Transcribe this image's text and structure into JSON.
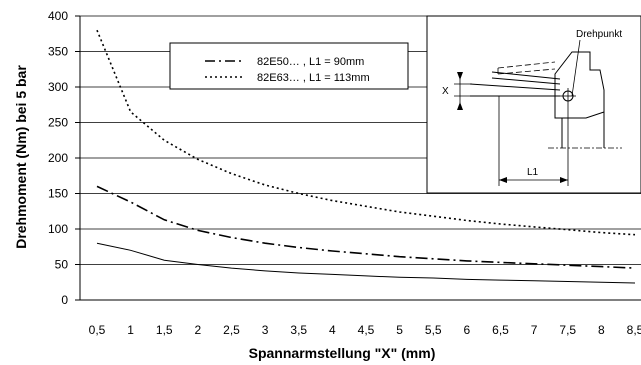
{
  "chart_data": {
    "type": "line",
    "xlabel": "Spannarmstellung \"X\" (mm)",
    "ylabel": "Drehmoment (Nm) bei 5 bar",
    "xlim": [
      0.5,
      8.5
    ],
    "ylim": [
      0,
      400
    ],
    "x_ticks": [
      "0,5",
      "1",
      "1,5",
      "2",
      "2,5",
      "3",
      "3,5",
      "4",
      "4,5",
      "5",
      "5,5",
      "6",
      "6,5",
      "7",
      "7,5",
      "8",
      "8,5"
    ],
    "y_ticks": [
      "0",
      "50",
      "100",
      "150",
      "200",
      "250",
      "300",
      "350",
      "400"
    ],
    "grid": "horizontal",
    "x": [
      0.5,
      1,
      1.5,
      2,
      2.5,
      3,
      3.5,
      4,
      4.5,
      5,
      5.5,
      6,
      6.5,
      7,
      7.5,
      8,
      8.5
    ],
    "series": [
      {
        "name": "82E50… , L1 = 90mm",
        "style": "dash-dot",
        "values": [
          160,
          138,
          113,
          98,
          88,
          80,
          74,
          69,
          65,
          61,
          58,
          55,
          53,
          51,
          49,
          47,
          45
        ]
      },
      {
        "name": "82E63… , L1 = 113mm",
        "style": "dotted",
        "values": [
          380,
          265,
          225,
          198,
          178,
          162,
          150,
          140,
          132,
          124,
          118,
          112,
          107,
          103,
          99,
          95,
          92
        ]
      },
      {
        "style": "solid",
        "values": [
          80,
          70,
          56,
          50,
          45,
          41,
          38,
          36,
          34,
          32,
          31,
          29,
          28,
          27,
          26,
          25,
          24
        ]
      }
    ],
    "legend": {
      "placement": "top-center"
    },
    "inset": {
      "label_pivot": "Drehpunkt",
      "label_x": "X",
      "label_l1": "L1"
    },
    "colors": {
      "lines": "#000000",
      "background": "#ffffff"
    }
  }
}
